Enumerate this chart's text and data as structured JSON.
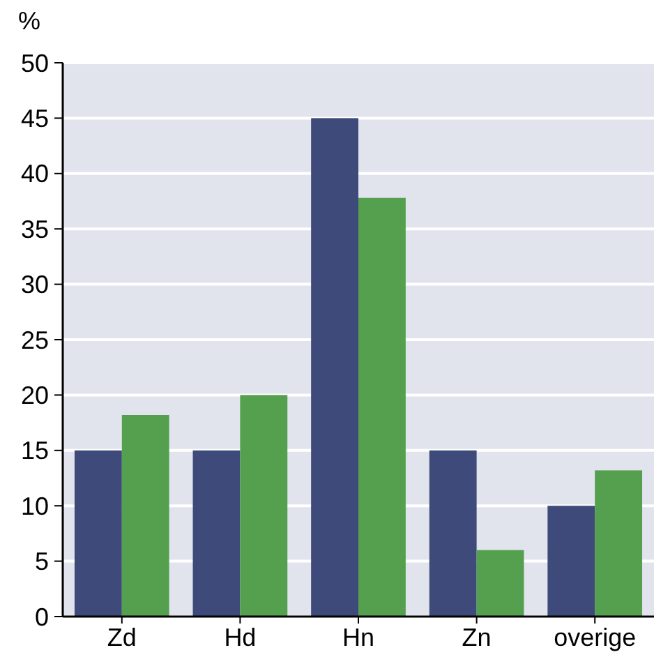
{
  "chart_data": {
    "type": "bar",
    "ylabel": "%",
    "categories": [
      "Zd",
      "Hd",
      "Hn",
      "Zn",
      "overige"
    ],
    "series": [
      {
        "color": "#3d4a7a",
        "values": [
          15,
          15,
          45,
          15,
          10
        ]
      },
      {
        "color": "#55a04f",
        "values": [
          18.2,
          20,
          37.8,
          6,
          13.2
        ]
      }
    ],
    "ylim": [
      0,
      50
    ],
    "yticks": [
      0,
      5,
      10,
      15,
      20,
      25,
      30,
      35,
      40,
      45,
      50
    ],
    "grid": "y"
  }
}
